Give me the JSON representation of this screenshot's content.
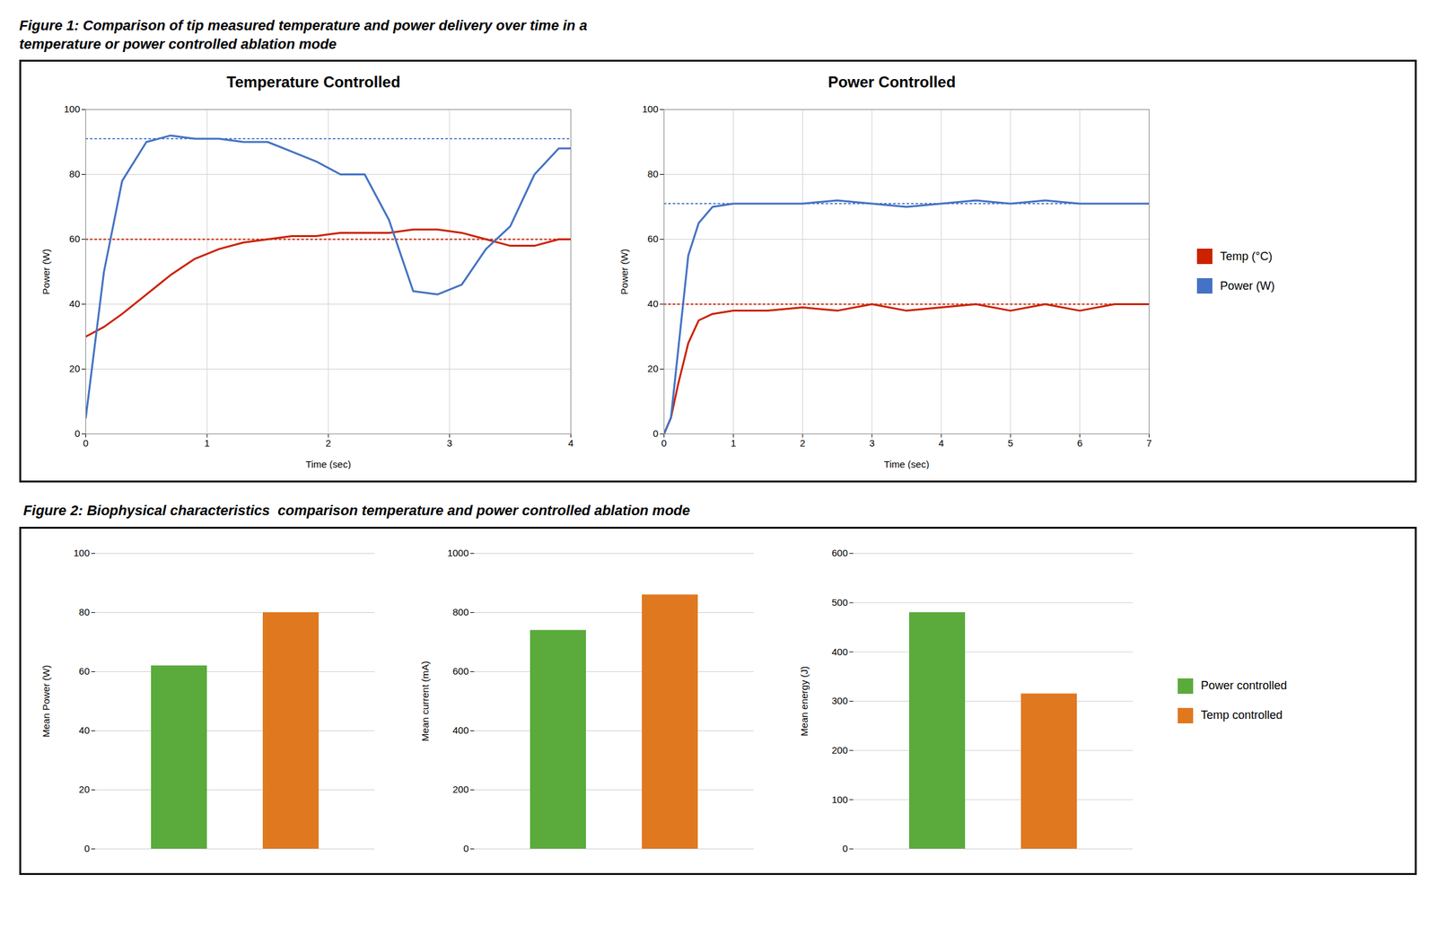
{
  "chart_data": [
    {
      "type": "line",
      "annotations": [
        "Figure 1: Comparison of tip measured temperature and power delivery over time in a\ntemperature or power controlled ablation mode"
      ],
      "title": "Temperature Controlled",
      "xlabel": "Time (sec)",
      "ylabel": "Power (W)",
      "x": [
        0,
        0.05,
        0.15,
        0.3,
        0.5,
        0.7,
        0.9,
        1.1,
        1.3,
        1.5,
        1.7,
        1.9,
        2.1,
        2.3,
        2.5,
        2.7,
        2.9,
        3.1,
        3.3,
        3.5,
        3.7,
        3.9,
        4.0
      ],
      "series": [
        {
          "name": "Temp (°C)",
          "color": "#cc2200",
          "values": [
            30,
            31,
            33,
            37,
            43,
            49,
            54,
            57,
            59,
            60,
            61,
            61,
            62,
            62,
            62,
            63,
            63,
            62,
            60,
            58,
            58,
            60,
            60
          ]
        },
        {
          "name": "Power (W)",
          "color": "#4472C4",
          "values": [
            5,
            20,
            50,
            78,
            90,
            92,
            91,
            91,
            90,
            90,
            87,
            84,
            80,
            80,
            66,
            44,
            43,
            46,
            57,
            64,
            80,
            88,
            88
          ]
        }
      ],
      "reference_lines": [
        {
          "y": 60,
          "color": "#cc2200",
          "line_style": "dashed"
        },
        {
          "y": 91,
          "color": "#4472C4",
          "line_style": "dashed"
        }
      ],
      "xlim": [
        0,
        4
      ],
      "xticks": [
        0,
        1,
        2,
        3,
        4
      ],
      "ylim": [
        0,
        100
      ],
      "yticks": [
        0,
        20,
        40,
        60,
        80,
        100
      ],
      "grid": true
    },
    {
      "type": "line",
      "title": "Power Controlled",
      "xlabel": "Time (sec)",
      "ylabel": "Power (W)",
      "x": [
        0,
        0.1,
        0.2,
        0.35,
        0.5,
        0.7,
        1.0,
        1.5,
        2.0,
        2.5,
        3.0,
        3.5,
        4.0,
        4.5,
        5.0,
        5.5,
        6.0,
        6.5,
        7.0
      ],
      "series": [
        {
          "name": "Temp (°C)",
          "color": "#cc2200",
          "values": [
            0,
            5,
            15,
            28,
            35,
            37,
            38,
            38,
            39,
            38,
            40,
            38,
            39,
            40,
            38,
            40,
            38,
            40,
            40
          ]
        },
        {
          "name": "Power (W)",
          "color": "#4472C4",
          "values": [
            0,
            5,
            25,
            55,
            65,
            70,
            71,
            71,
            71,
            72,
            71,
            70,
            71,
            72,
            71,
            72,
            71,
            71,
            71
          ]
        }
      ],
      "reference_lines": [
        {
          "y": 40,
          "color": "#cc2200",
          "line_style": "dashed"
        },
        {
          "y": 71,
          "color": "#4472C4",
          "line_style": "dashed"
        }
      ],
      "xlim": [
        0,
        7
      ],
      "xticks": [
        0,
        1,
        2,
        3,
        4,
        5,
        6,
        7
      ],
      "ylim": [
        0,
        100
      ],
      "yticks": [
        0,
        20,
        40,
        60,
        80,
        100
      ],
      "grid": true,
      "legend": "right"
    },
    {
      "type": "bar",
      "annotations": [
        " Figure 2: Biophysical characteristics  comparison temperature and power controlled ablation mode"
      ],
      "ylabel": "Mean Power (W)",
      "categories": [
        "Power controlled",
        "Temp controlled"
      ],
      "values": [
        62,
        80
      ],
      "colors": [
        "#5aab3c",
        "#e07820"
      ],
      "ylim": [
        0,
        100
      ],
      "yticks": [
        0,
        20,
        40,
        60,
        80,
        100
      ],
      "grid": true,
      "tick_labels": "y"
    },
    {
      "type": "bar",
      "ylabel": "Mean current (mA)",
      "categories": [
        "Power controlled",
        "Temp controlled"
      ],
      "values": [
        740,
        860
      ],
      "colors": [
        "#5aab3c",
        "#e07820"
      ],
      "ylim": [
        0,
        1000
      ],
      "yticks": [
        0,
        200,
        400,
        600,
        800,
        1000
      ],
      "grid": true,
      "tick_labels": "y"
    },
    {
      "type": "bar",
      "ylabel": "Mean energy (J)",
      "categories": [
        "Power controlled",
        "Temp controlled"
      ],
      "values": [
        480,
        315
      ],
      "colors": [
        "#5aab3c",
        "#e07820"
      ],
      "ylim": [
        0,
        600
      ],
      "yticks": [
        0,
        100,
        200,
        300,
        400,
        500,
        600
      ],
      "grid": true,
      "tick_labels": "y",
      "legend": "right"
    }
  ]
}
